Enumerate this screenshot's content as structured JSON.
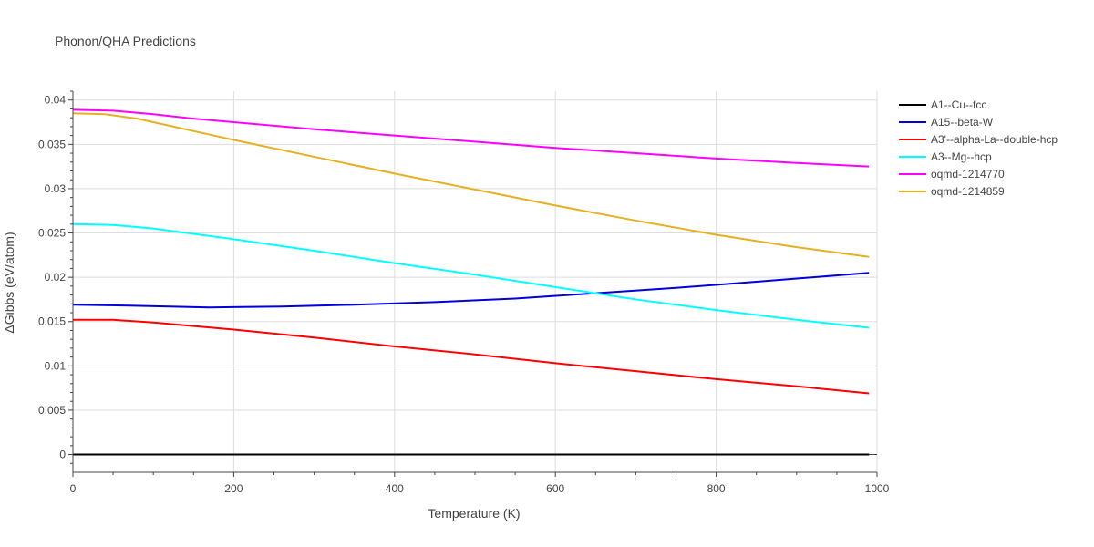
{
  "chart_data": {
    "type": "line",
    "title": "Phonon/QHA Predictions",
    "xlabel": "Temperature (K)",
    "ylabel": "ΔGibbs (eV/atom)",
    "xlim": [
      0,
      1000
    ],
    "ylim": [
      -0.002,
      0.041
    ],
    "xticks": [
      0,
      200,
      400,
      600,
      800,
      1000
    ],
    "yticks": [
      0,
      0.005,
      0.01,
      0.015,
      0.02,
      0.025,
      0.03,
      0.035,
      0.04
    ],
    "xtick_labels": [
      "0",
      "200",
      "400",
      "600",
      "800",
      "1000"
    ],
    "ytick_labels": [
      "0",
      "0.005",
      "0.01",
      "0.015",
      "0.02",
      "0.025",
      "0.03",
      "0.035",
      "0.04"
    ],
    "grid": true,
    "legend_position": "top-right, outside plot",
    "series": [
      {
        "name": "A1--Cu--fcc",
        "color": "#000000",
        "x": [
          0,
          100,
          200,
          300,
          400,
          500,
          600,
          700,
          800,
          900,
          990
        ],
        "y": [
          0,
          0,
          0,
          0,
          0,
          0,
          0,
          0,
          0,
          0,
          0
        ]
      },
      {
        "name": "A15--beta-W",
        "color": "#0000dd",
        "x": [
          0,
          70,
          120,
          170,
          260,
          350,
          450,
          550,
          650,
          750,
          850,
          990
        ],
        "y": [
          0.0169,
          0.0168,
          0.0167,
          0.0166,
          0.0167,
          0.0169,
          0.0172,
          0.0176,
          0.0182,
          0.0188,
          0.0195,
          0.0205
        ]
      },
      {
        "name": "A3'--alpha-La--double-hcp",
        "color": "#ff0000",
        "x": [
          0,
          50,
          100,
          150,
          200,
          300,
          400,
          500,
          600,
          700,
          800,
          900,
          990
        ],
        "y": [
          0.0152,
          0.0152,
          0.0149,
          0.0145,
          0.0141,
          0.0132,
          0.0122,
          0.0113,
          0.0103,
          0.0094,
          0.0085,
          0.0077,
          0.0069
        ]
      },
      {
        "name": "A3--Mg--hcp",
        "color": "#00ffff",
        "x": [
          0,
          50,
          100,
          150,
          200,
          300,
          400,
          500,
          600,
          700,
          800,
          900,
          990
        ],
        "y": [
          0.026,
          0.0259,
          0.0255,
          0.0249,
          0.0243,
          0.023,
          0.0216,
          0.0203,
          0.0189,
          0.0175,
          0.0163,
          0.0152,
          0.0143
        ]
      },
      {
        "name": "oqmd-1214770",
        "color": "#ff00ff",
        "x": [
          0,
          50,
          100,
          150,
          200,
          300,
          400,
          500,
          600,
          700,
          800,
          900,
          990
        ],
        "y": [
          0.0389,
          0.0388,
          0.0384,
          0.0379,
          0.0375,
          0.0367,
          0.036,
          0.0353,
          0.0346,
          0.034,
          0.0334,
          0.0329,
          0.0325
        ]
      },
      {
        "name": "oqmd-1214859",
        "color": "#e6b020",
        "x": [
          0,
          40,
          80,
          120,
          160,
          200,
          300,
          400,
          500,
          600,
          700,
          800,
          900,
          990
        ],
        "y": [
          0.0385,
          0.0384,
          0.0379,
          0.0371,
          0.0363,
          0.0355,
          0.0336,
          0.0317,
          0.0299,
          0.0281,
          0.0264,
          0.0248,
          0.0234,
          0.0223
        ]
      }
    ]
  }
}
